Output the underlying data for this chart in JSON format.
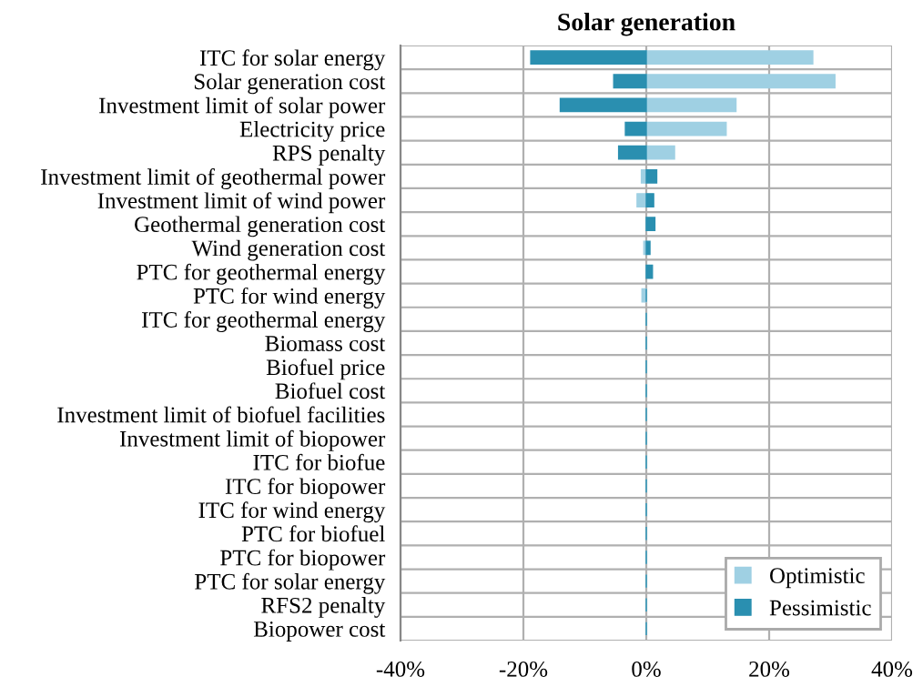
{
  "chart_data": {
    "type": "bar",
    "orientation": "horizontal",
    "title": "Solar generation",
    "categories": [
      "ITC for solar energy",
      "Solar generation cost",
      "Investment limit of solar power",
      "Electricity price",
      "RPS penalty",
      "Investment limit of geothermal power",
      "Investment limit of wind power",
      "Geothermal generation cost",
      "Wind generation cost",
      "PTC for geothermal energy",
      "PTC for wind energy",
      "ITC for geothermal energy",
      "Biomass cost",
      "Biofuel price",
      "Biofuel cost",
      "Investment limit of biofuel facilities",
      "Investment limit of biopower",
      "ITC for biofue",
      "ITC for biopower",
      "ITC for wind energy",
      "PTC for biofuel",
      "PTC for biopower",
      "PTC for solar energy",
      "RFS2 penalty",
      "Biopower cost"
    ],
    "series": [
      {
        "name": "Optimistic",
        "color": "#9fd0e3",
        "values": [
          27.1,
          30.7,
          14.6,
          13.0,
          4.6,
          -0.8,
          -1.5,
          0,
          -0.4,
          0,
          -0.7,
          0,
          0,
          0,
          0,
          0,
          0,
          0,
          0,
          0,
          0,
          0,
          0,
          0,
          0
        ]
      },
      {
        "name": "Pessimistic",
        "color": "#2a8fb0",
        "values": [
          -18.8,
          -5.3,
          -14.0,
          -3.4,
          -4.5,
          1.7,
          1.2,
          1.4,
          0.6,
          1.0,
          0,
          0,
          0,
          0,
          0,
          0,
          0,
          0,
          0,
          0,
          0,
          0,
          0,
          0,
          0
        ]
      }
    ],
    "xlim": [
      -40,
      40
    ],
    "xticks": [
      {
        "value": -40,
        "label": "-40%"
      },
      {
        "value": -20,
        "label": "-20%"
      },
      {
        "value": 0,
        "label": "0%"
      },
      {
        "value": 20,
        "label": "20%"
      },
      {
        "value": 40,
        "label": "40%"
      }
    ],
    "grid": true,
    "legend": "bottom right"
  }
}
